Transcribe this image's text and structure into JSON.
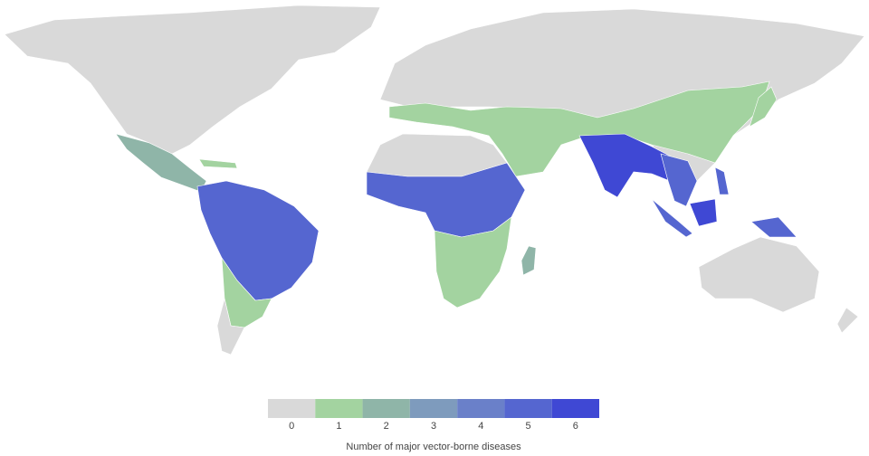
{
  "legend": {
    "title": "Number of major vector-borne diseases",
    "bins": [
      {
        "value": 0,
        "color": "#d9d9d9"
      },
      {
        "value": 1,
        "color": "#a3d3a0"
      },
      {
        "value": 2,
        "color": "#8fb5a8"
      },
      {
        "value": 3,
        "color": "#7e9bbd"
      },
      {
        "value": 4,
        "color": "#6a80c9"
      },
      {
        "value": 5,
        "color": "#5566d0"
      },
      {
        "value": 6,
        "color": "#3f48d4"
      }
    ]
  }
}
